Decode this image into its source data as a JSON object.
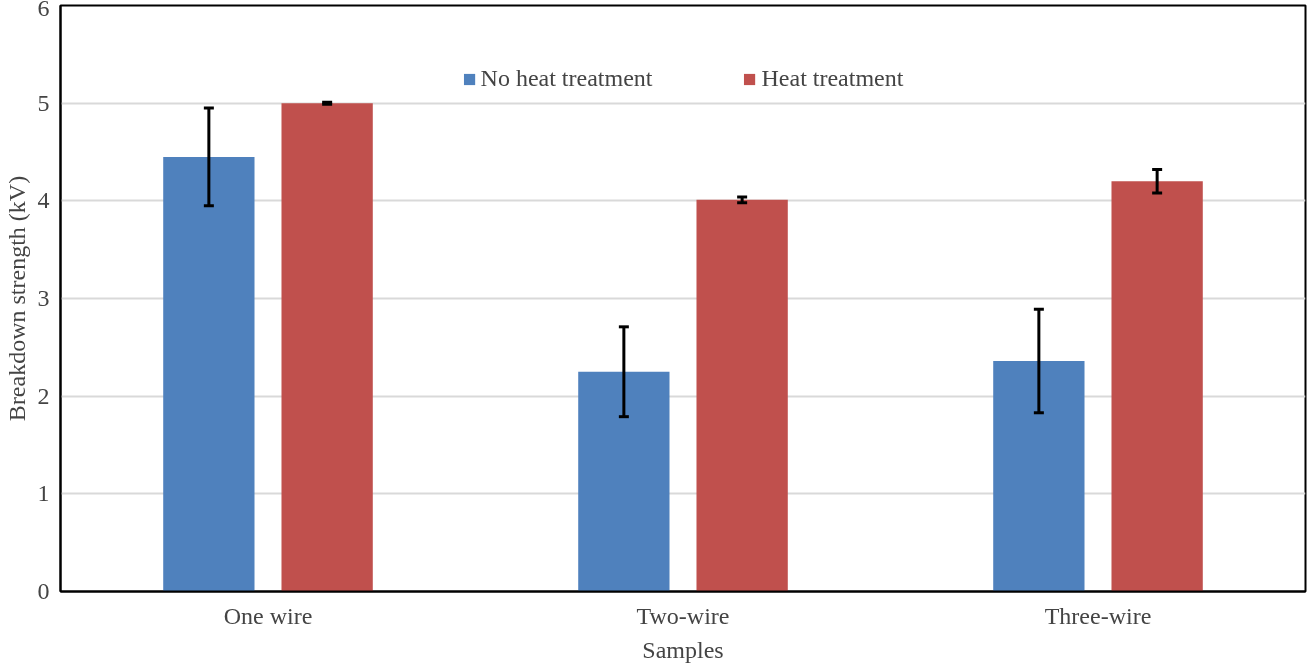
{
  "chart_data": {
    "type": "bar",
    "xlabel": "Samples",
    "ylabel": "Breakdown strength (kV)",
    "categories": [
      "One wire",
      "Two-wire",
      "Three-wire"
    ],
    "series": [
      {
        "name": "No heat treatment",
        "color": "#4f81bd",
        "values": [
          4.45,
          2.25,
          2.36
        ],
        "errors": [
          0.5,
          0.46,
          0.53
        ]
      },
      {
        "name": "Heat treatment",
        "color": "#c0504d",
        "values": [
          5.0,
          4.01,
          4.2
        ],
        "errors": [
          0.01,
          0.03,
          0.12
        ]
      }
    ],
    "ylim": [
      0,
      6
    ],
    "yticks": [
      0,
      1,
      2,
      3,
      4,
      5,
      6
    ],
    "grid": "y",
    "legend": "top"
  }
}
